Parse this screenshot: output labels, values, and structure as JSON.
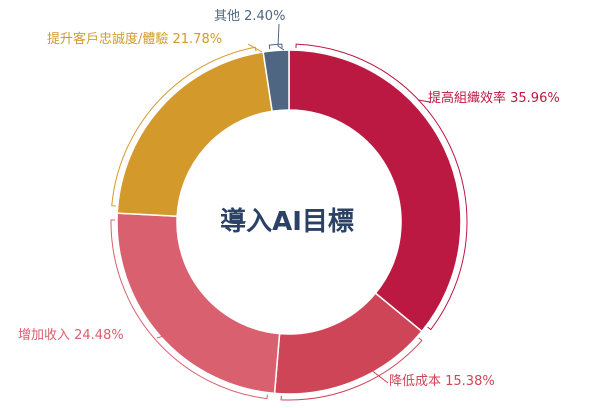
{
  "chart_data": {
    "type": "pie",
    "donut": true,
    "center_title": "導入AI目標",
    "slices": [
      {
        "label": "提高組織效率",
        "value": 35.96,
        "display": "提高組織效率 35.96%",
        "color": "#bb1942"
      },
      {
        "label": "降低成本",
        "value": 15.38,
        "display": "降低成本 15.38%",
        "color": "#cf4558"
      },
      {
        "label": "增加收入",
        "value": 24.48,
        "display": "增加收入 24.48%",
        "color": "#d9606e"
      },
      {
        "label": "提升客戶忠誠度/體驗",
        "value": 21.78,
        "display": "提升客戶忠誠度/體驗 21.78%",
        "color": "#d39a2b"
      },
      {
        "label": "其他",
        "value": 2.4,
        "display": "其他 2.40%",
        "color": "#4f6682"
      }
    ]
  }
}
